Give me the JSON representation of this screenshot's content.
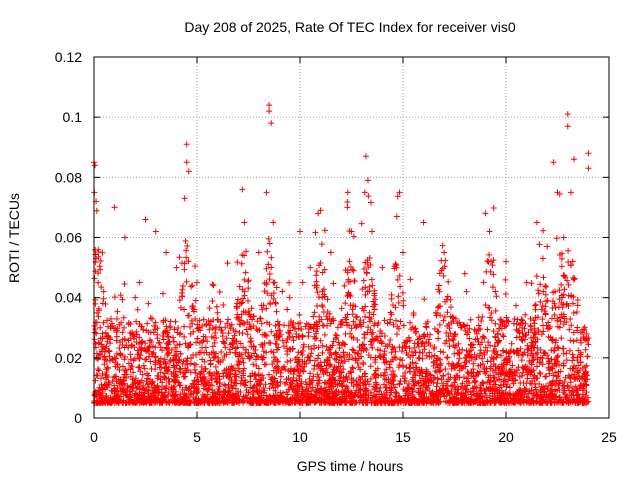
{
  "chart_data": {
    "type": "scatter",
    "title": "Day 208 of 2025, Rate Of TEC Index for receiver vis0",
    "xlabel": "GPS time / hours",
    "ylabel": "ROTI / TECUs",
    "xlim": [
      0,
      25
    ],
    "ylim": [
      0,
      0.12
    ],
    "xticks": [
      0,
      5,
      10,
      15,
      20,
      25
    ],
    "xtick_labels": [
      "0",
      "5",
      "10",
      "15",
      "20",
      "25"
    ],
    "yticks": [
      0,
      0.02,
      0.04,
      0.06,
      0.08,
      0.1,
      0.12
    ],
    "ytick_labels": [
      "0",
      "0.02",
      "0.04",
      "0.06",
      "0.08",
      "0.1",
      "0.12"
    ],
    "grid": true,
    "marker": "+",
    "color": "#ff0000",
    "series": [
      {
        "name": "ROTI",
        "description": "Dense cloud of ROTI samples over 0-24 h; bulk between 0.005 and 0.03 TECU/s",
        "x": [
          0.0,
          0.05,
          0.1,
          0.1,
          0.2,
          0.3,
          0.5,
          1.0,
          1.5,
          2.0,
          2.5,
          3.0,
          3.5,
          4.0,
          4.4,
          4.5,
          4.5,
          4.6,
          5.0,
          6.0,
          7.2,
          7.3,
          8.0,
          8.5,
          8.5,
          8.6,
          8.7,
          9.5,
          10.0,
          10.5,
          11.0,
          11.5,
          12.3,
          12.5,
          13.2,
          13.3,
          13.5,
          14.0,
          14.7,
          15.0,
          16.0,
          17.0,
          18.0,
          19.0,
          19.2,
          20.0,
          21.0,
          21.5,
          22.0,
          22.3,
          22.5,
          22.8,
          23.0,
          23.0,
          23.3,
          24.0,
          24.0
        ],
        "y": [
          0.085,
          0.084,
          0.072,
          0.053,
          0.045,
          0.03,
          0.02,
          0.07,
          0.06,
          0.04,
          0.066,
          0.062,
          0.055,
          0.05,
          0.073,
          0.091,
          0.085,
          0.082,
          0.045,
          0.035,
          0.076,
          0.065,
          0.055,
          0.104,
          0.102,
          0.098,
          0.065,
          0.04,
          0.062,
          0.05,
          0.069,
          0.055,
          0.07,
          0.062,
          0.087,
          0.079,
          0.062,
          0.05,
          0.067,
          0.055,
          0.065,
          0.055,
          0.048,
          0.068,
          0.062,
          0.052,
          0.045,
          0.065,
          0.057,
          0.085,
          0.075,
          0.06,
          0.101,
          0.097,
          0.086,
          0.088,
          0.083
        ]
      }
    ]
  }
}
